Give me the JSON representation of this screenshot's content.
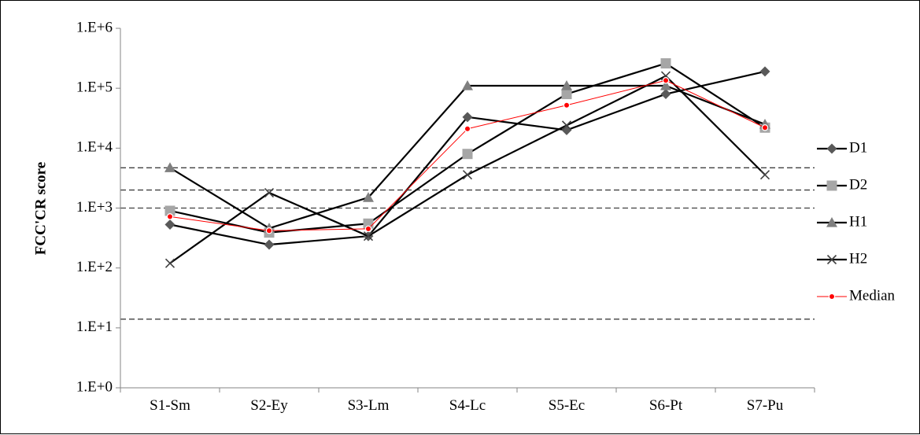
{
  "chart_data": {
    "type": "line",
    "title": "",
    "xlabel": "",
    "ylabel": "FCC'CR score",
    "y_scale": "log",
    "ylim": [
      1,
      1000000
    ],
    "y_ticks": [
      {
        "value": 1,
        "label": "1.E+0"
      },
      {
        "value": 10,
        "label": "1.E+1"
      },
      {
        "value": 100,
        "label": "1.E+2"
      },
      {
        "value": 1000,
        "label": "1.E+3"
      },
      {
        "value": 10000,
        "label": "1.E+4"
      },
      {
        "value": 100000,
        "label": "1.E+5"
      },
      {
        "value": 1000000,
        "label": "1.E+6"
      }
    ],
    "categories": [
      "S1-Sm",
      "S2-Ey",
      "S3-Lm",
      "S4-Lc",
      "S5-Ec",
      "S6-Pt",
      "S7-Pu"
    ],
    "reference_lines": [
      4700,
      2000,
      1000,
      14
    ],
    "grid": false,
    "legend_position": "right",
    "series": [
      {
        "name": "D1",
        "marker": "diamond",
        "line_color": "#000000",
        "marker_color": "#595959",
        "line_width": 2.2,
        "values": [
          530,
          245,
          340,
          33000,
          20000,
          80000,
          190000
        ]
      },
      {
        "name": "D2",
        "marker": "square",
        "line_color": "#000000",
        "marker_color": "#a6a6a6",
        "line_width": 2.2,
        "values": [
          900,
          390,
          550,
          8000,
          80000,
          260000,
          22000
        ]
      },
      {
        "name": "H1",
        "marker": "triangle",
        "line_color": "#000000",
        "marker_color": "#7f7f7f",
        "line_width": 2.2,
        "values": [
          4700,
          460,
          1500,
          110000,
          110000,
          110000,
          25000
        ]
      },
      {
        "name": "H2",
        "marker": "x",
        "line_color": "#000000",
        "marker_color": "#404040",
        "line_width": 2.2,
        "values": [
          120,
          1800,
          340,
          3600,
          24000,
          160000,
          3600
        ]
      },
      {
        "name": "Median",
        "marker": "circle",
        "line_color": "#ff0000",
        "marker_color": "#ff0000",
        "line_width": 1,
        "values": [
          720,
          420,
          450,
          21000,
          52000,
          135000,
          22000
        ]
      }
    ]
  }
}
